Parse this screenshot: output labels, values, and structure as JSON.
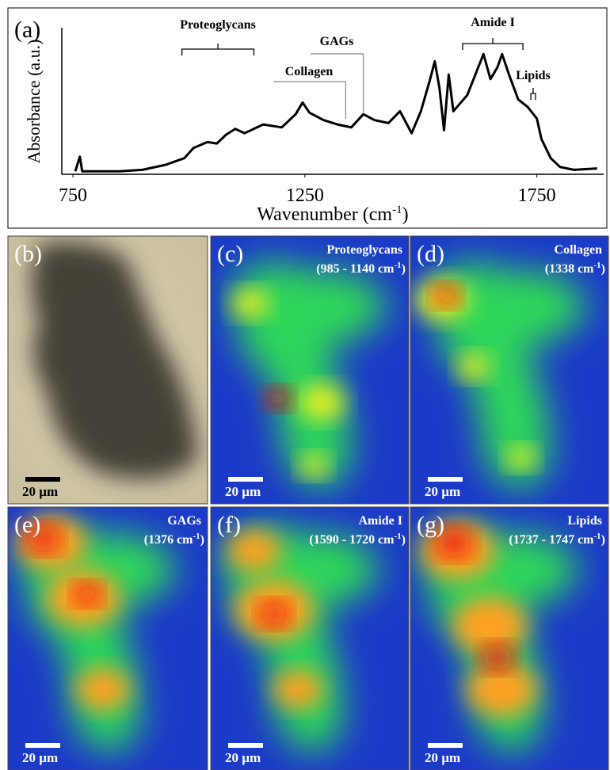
{
  "chart_data": {
    "type": "line",
    "panel_label": "(a)",
    "y_label": "Absorbance (a.u.)",
    "x_label": [
      "Wavenumber (cm",
      "-1",
      ")"
    ],
    "xlim": [
      726,
      1894
    ],
    "ylim": [
      0,
      1
    ],
    "xticks": [
      750,
      1250,
      1750
    ],
    "color": "#000000",
    "x": [
      755,
      765,
      770,
      850,
      900,
      950,
      990,
      1010,
      1040,
      1060,
      1080,
      1100,
      1120,
      1140,
      1160,
      1200,
      1230,
      1245,
      1260,
      1290,
      1320,
      1350,
      1376,
      1400,
      1430,
      1455,
      1480,
      1500,
      1520,
      1530,
      1540,
      1550,
      1560,
      1570,
      1600,
      1620,
      1635,
      1650,
      1665,
      1675,
      1690,
      1710,
      1730,
      1750,
      1760,
      1780,
      1800,
      1830,
      1880
    ],
    "values": [
      0.02,
      0.12,
      0.02,
      0.02,
      0.03,
      0.065,
      0.11,
      0.18,
      0.22,
      0.21,
      0.27,
      0.31,
      0.28,
      0.31,
      0.34,
      0.32,
      0.41,
      0.49,
      0.42,
      0.37,
      0.34,
      0.32,
      0.41,
      0.37,
      0.35,
      0.43,
      0.28,
      0.43,
      0.65,
      0.77,
      0.59,
      0.3,
      0.68,
      0.43,
      0.54,
      0.7,
      0.82,
      0.65,
      0.73,
      0.82,
      0.68,
      0.51,
      0.46,
      0.38,
      0.24,
      0.11,
      0.05,
      0.03,
      0.04
    ],
    "annotations": [
      {
        "text": "Proteoglycans",
        "x": [
          985,
          1140
        ]
      },
      {
        "text": "Collagen",
        "x": [
          1338
        ]
      },
      {
        "text": "GAGs",
        "x": [
          1376
        ]
      },
      {
        "text": "Amide I",
        "x": [
          1590,
          1720
        ]
      },
      {
        "text": "Lipids",
        "x": [
          1737,
          1747
        ]
      }
    ]
  },
  "panels": [
    {
      "label": "(b)",
      "scale_bar": "20 µm"
    },
    {
      "label": "(c)",
      "title": "Proteoglycans",
      "subtitle": [
        "(985 - 1140 cm",
        "-1",
        ")"
      ],
      "scale_bar": "20 µm"
    },
    {
      "label": "(d)",
      "title": "Collagen",
      "subtitle": [
        "(1338 cm",
        "-1",
        ")"
      ],
      "scale_bar": "20 µm"
    },
    {
      "label": "(e)",
      "title": "GAGs",
      "subtitle": [
        "(1376 cm",
        "-1",
        ")"
      ],
      "scale_bar": "20 µm"
    },
    {
      "label": "(f)",
      "title": "Amide I",
      "subtitle": [
        "(1590 - 1720 cm",
        "-1",
        ")"
      ],
      "scale_bar": "20 µm"
    },
    {
      "label": "(g)",
      "title": "Lipids",
      "subtitle": [
        "(1737 - 1747 cm",
        "-1",
        ")"
      ],
      "scale_bar": "20 µm"
    }
  ]
}
